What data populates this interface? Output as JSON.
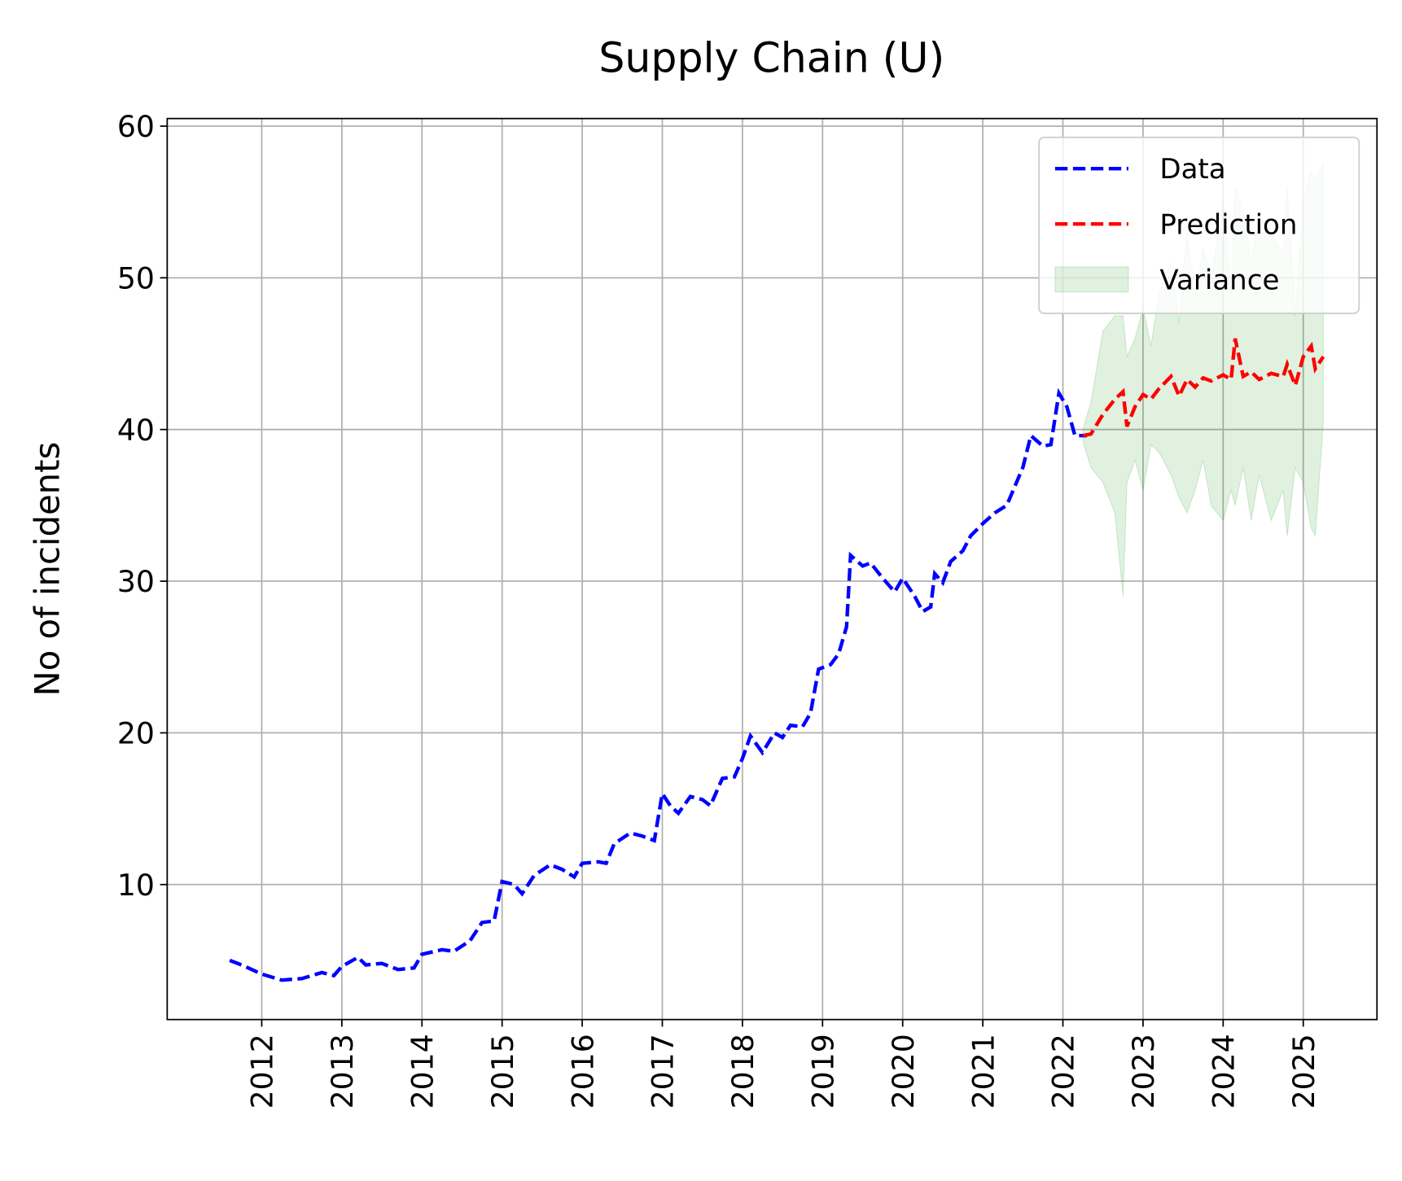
{
  "chart_data": {
    "type": "line",
    "title": "Supply Chain (U)",
    "ylabel": "No of incidents",
    "xlim": [
      2010.82,
      2025.92
    ],
    "ylim": [
      1.1,
      60.5
    ],
    "xticks": [
      2012,
      2013,
      2014,
      2015,
      2016,
      2017,
      2018,
      2019,
      2020,
      2021,
      2022,
      2023,
      2024,
      2025
    ],
    "yticks": [
      10,
      20,
      30,
      40,
      50,
      60
    ],
    "grid": true,
    "legend": "upper right",
    "series": [
      {
        "name": "Data",
        "color": "#0000ff",
        "style": "dashed",
        "x": [
          2011.6,
          2011.75,
          2012.0,
          2012.25,
          2012.5,
          2012.75,
          2012.9,
          2013.0,
          2013.2,
          2013.3,
          2013.5,
          2013.7,
          2013.9,
          2014.0,
          2014.25,
          2014.4,
          2014.6,
          2014.75,
          2014.9,
          2015.0,
          2015.15,
          2015.25,
          2015.4,
          2015.6,
          2015.75,
          2015.9,
          2016.0,
          2016.2,
          2016.3,
          2016.4,
          2016.6,
          2016.75,
          2016.9,
          2017.0,
          2017.1,
          2017.2,
          2017.35,
          2017.5,
          2017.6,
          2017.75,
          2017.9,
          2018.0,
          2018.1,
          2018.25,
          2018.4,
          2018.5,
          2018.6,
          2018.75,
          2018.85,
          2018.95,
          2019.1,
          2019.2,
          2019.3,
          2019.35,
          2019.5,
          2019.6,
          2019.75,
          2019.9,
          2020.0,
          2020.15,
          2020.25,
          2020.35,
          2020.4,
          2020.5,
          2020.6,
          2020.75,
          2020.85,
          2021.0,
          2021.15,
          2021.3,
          2021.5,
          2021.6,
          2021.75,
          2021.85,
          2021.95,
          2022.05,
          2022.15,
          2022.3
        ],
        "values": [
          5.0,
          4.7,
          4.1,
          3.7,
          3.8,
          4.2,
          4.0,
          4.6,
          5.2,
          4.7,
          4.8,
          4.4,
          4.5,
          5.4,
          5.7,
          5.6,
          6.3,
          7.5,
          7.6,
          10.2,
          10.0,
          9.4,
          10.6,
          11.3,
          11.0,
          10.5,
          11.4,
          11.5,
          11.4,
          12.7,
          13.4,
          13.2,
          12.9,
          16.0,
          15.2,
          14.7,
          15.8,
          15.6,
          15.2,
          17.0,
          17.1,
          18.3,
          19.8,
          18.7,
          20.0,
          19.7,
          20.5,
          20.4,
          21.3,
          24.2,
          24.5,
          25.2,
          27.0,
          31.7,
          31.0,
          31.2,
          30.2,
          29.3,
          30.2,
          29.0,
          28.0,
          28.3,
          30.5,
          29.9,
          31.3,
          32.0,
          33.0,
          33.8,
          34.5,
          35.0,
          37.5,
          39.6,
          38.9,
          39.0,
          42.4,
          41.5,
          39.6,
          39.6
        ]
      },
      {
        "name": "Prediction",
        "color": "#ff0000",
        "style": "dashed",
        "x": [
          2022.25,
          2022.35,
          2022.5,
          2022.65,
          2022.75,
          2022.8,
          2022.9,
          2023.0,
          2023.1,
          2023.2,
          2023.35,
          2023.45,
          2023.55,
          2023.65,
          2023.75,
          2023.85,
          2024.0,
          2024.1,
          2024.15,
          2024.25,
          2024.35,
          2024.45,
          2024.6,
          2024.75,
          2024.8,
          2024.9,
          2025.0,
          2025.1,
          2025.15,
          2025.25
        ],
        "values": [
          39.6,
          39.7,
          41.0,
          42.0,
          42.5,
          40.2,
          41.5,
          42.3,
          42.0,
          42.7,
          43.5,
          42.2,
          43.3,
          42.8,
          43.4,
          43.2,
          43.6,
          43.3,
          46.0,
          43.5,
          43.8,
          43.3,
          43.7,
          43.5,
          44.3,
          42.9,
          44.8,
          45.5,
          44.0,
          44.8
        ]
      },
      {
        "name": "Variance",
        "color": "#2ca02c",
        "style": "band",
        "x": [
          2022.25,
          2022.35,
          2022.5,
          2022.65,
          2022.75,
          2022.8,
          2022.9,
          2023.0,
          2023.1,
          2023.2,
          2023.35,
          2023.45,
          2023.55,
          2023.65,
          2023.75,
          2023.85,
          2024.0,
          2024.1,
          2024.15,
          2024.25,
          2024.35,
          2024.45,
          2024.6,
          2024.75,
          2024.8,
          2024.9,
          2025.0,
          2025.1,
          2025.15,
          2025.25
        ],
        "upper": [
          40.0,
          41.8,
          46.5,
          47.5,
          47.5,
          44.8,
          46.0,
          48.0,
          45.5,
          49.0,
          51.0,
          47.0,
          53.0,
          48.5,
          52.0,
          50.0,
          55.0,
          49.0,
          56.0,
          54.5,
          51.0,
          54.0,
          53.0,
          51.5,
          56.0,
          47.5,
          55.0,
          57.0,
          56.5,
          57.5
        ],
        "lower": [
          39.2,
          37.5,
          36.5,
          34.5,
          29.0,
          36.5,
          38.0,
          36.0,
          39.0,
          38.5,
          37.0,
          35.5,
          34.5,
          36.0,
          38.0,
          35.0,
          34.0,
          36.0,
          35.0,
          37.5,
          34.0,
          37.0,
          34.0,
          36.0,
          33.0,
          37.5,
          36.5,
          33.5,
          33.0,
          40.5
        ]
      }
    ]
  }
}
